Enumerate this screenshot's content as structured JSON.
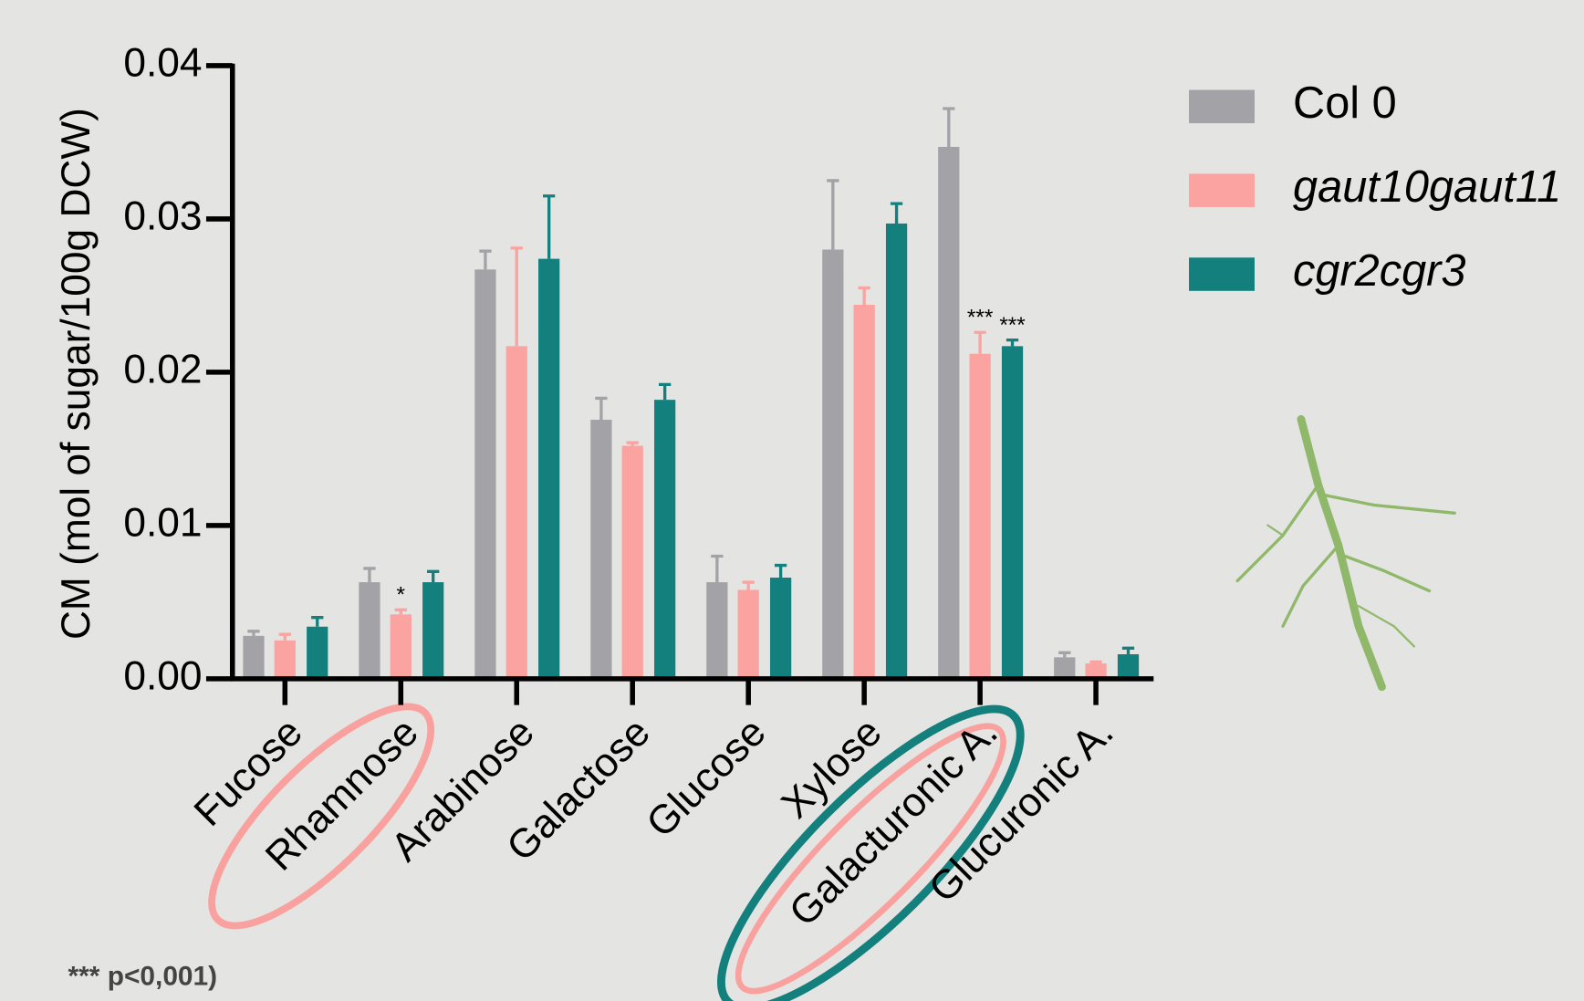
{
  "chart_data": {
    "type": "bar",
    "y_label": "CM (mol of sugar/100g DCW)",
    "categories": [
      "Fucose",
      "Rhamnose",
      "Arabinose",
      "Galactose",
      "Glucose",
      "Xylose",
      "Galacturonic A.",
      "Glucuronic A."
    ],
    "series": [
      {
        "name": "Col 0",
        "color": "#a3a2a7",
        "values": [
          0.0028,
          0.0063,
          0.0267,
          0.0169,
          0.0063,
          0.028,
          0.0347,
          0.0014
        ],
        "errors": [
          0.0003,
          0.0009,
          0.0012,
          0.0014,
          0.0017,
          0.0045,
          0.0025,
          0.0003
        ],
        "significance": [
          null,
          null,
          null,
          null,
          null,
          null,
          null,
          null
        ]
      },
      {
        "name": "gaut10gaut11",
        "color": "#fba3a0",
        "values": [
          0.0025,
          0.0042,
          0.0217,
          0.0152,
          0.0058,
          0.0244,
          0.0212,
          0.001
        ],
        "errors": [
          0.0004,
          0.0003,
          0.0064,
          0.0002,
          0.0005,
          0.0011,
          0.0014,
          0.0001
        ],
        "significance": [
          null,
          "*",
          null,
          null,
          null,
          null,
          "***",
          null
        ]
      },
      {
        "name": "cgr2cgr3",
        "color": "#14807d",
        "values": [
          0.0034,
          0.0063,
          0.0274,
          0.0182,
          0.0066,
          0.0297,
          0.0217,
          0.0016
        ],
        "errors": [
          0.0006,
          0.0007,
          0.0041,
          0.001,
          0.0008,
          0.0013,
          0.0004,
          0.0004
        ],
        "significance": [
          null,
          null,
          null,
          null,
          null,
          null,
          "***",
          null
        ]
      }
    ],
    "ylim": [
      0,
      0.04
    ],
    "yticks": [
      {
        "value": 0,
        "label": "0.00"
      },
      {
        "value": 0.01,
        "label": "0.01"
      },
      {
        "value": 0.02,
        "label": "0.02"
      },
      {
        "value": 0.03,
        "label": "0.03"
      },
      {
        "value": 0.04,
        "label": "0.04"
      }
    ],
    "note": "*** p<0,001)"
  }
}
